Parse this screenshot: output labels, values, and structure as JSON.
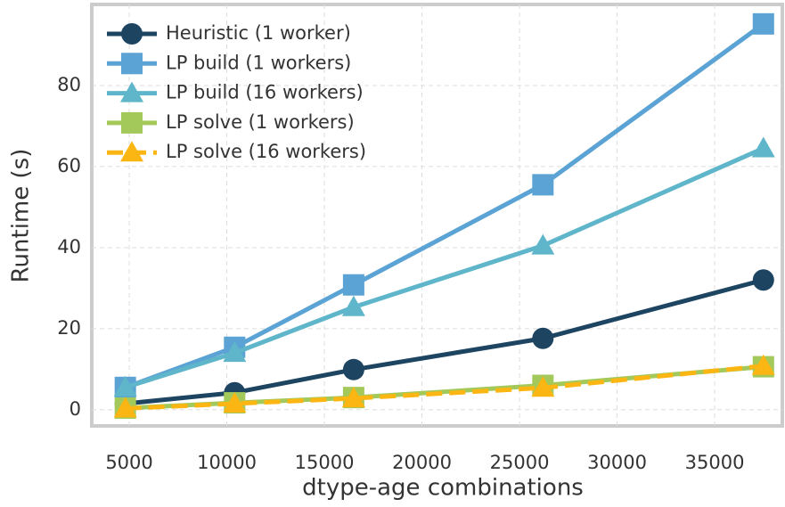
{
  "chart_data": {
    "type": "line",
    "x_label": "dtype-age combinations",
    "y_label": "Runtime (s)",
    "x": [
      4800,
      10400,
      16500,
      26200,
      37500
    ],
    "series": [
      {
        "name": "Heuristic (1 worker)",
        "color": "#1d4461",
        "marker": "circle",
        "linestyle": "solid",
        "values": [
          1.5,
          4.2,
          9.9,
          17.6,
          32
        ]
      },
      {
        "name": "LP build (1 workers)",
        "color": "#5ba3d4",
        "marker": "square",
        "linestyle": "solid",
        "values": [
          5.5,
          15.4,
          30.8,
          55.5,
          95.2
        ]
      },
      {
        "name": "LP build (16 workers)",
        "color": "#5fb5c9",
        "marker": "triangle",
        "linestyle": "solid",
        "values": [
          5.5,
          14,
          25.3,
          40.5,
          64.5
        ]
      },
      {
        "name": "LP solve (1 workers)",
        "color": "#a2c95a",
        "marker": "square",
        "linestyle": "solid",
        "values": [
          0.4,
          1.7,
          3,
          6,
          10.6
        ]
      },
      {
        "name": "LP solve (16 workers)",
        "color": "#fbb614",
        "marker": "triangle",
        "linestyle": "dashed",
        "values": [
          0.3,
          1.5,
          2.8,
          5.4,
          10.8
        ]
      }
    ],
    "xlim": [
      3080,
      38560
    ],
    "xticks": [
      5000,
      10000,
      15000,
      20000,
      25000,
      30000,
      35000
    ],
    "ylim": [
      -4,
      100
    ],
    "yticks": [
      0,
      20,
      40,
      60,
      80
    ],
    "grid": true,
    "legend": "upper left"
  }
}
